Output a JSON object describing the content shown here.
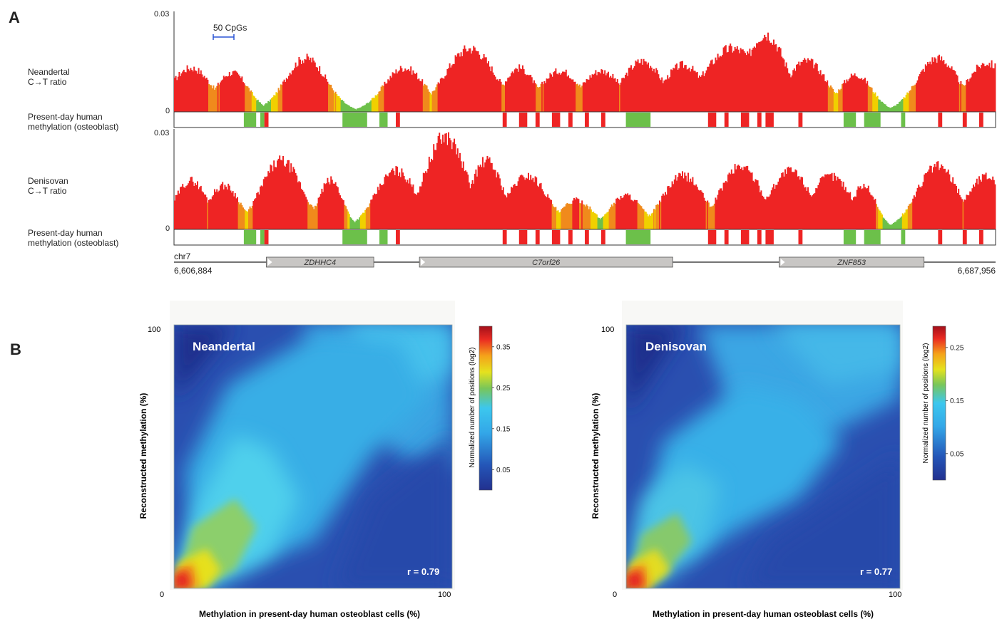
{
  "panel_a": {
    "letter": "A",
    "scale_bar_label": "50 CpGs",
    "neandertal_label": "Neandertal\nC→T ratio",
    "denisovan_label": "Denisovan\nC→T ratio",
    "methylation_label_1": "Present-day human\nmethylation (osteoblast)",
    "methylation_label_2": "Present-day human\nmethylation (osteoblast)",
    "ymax_1": "0.03",
    "ymin_1": "0",
    "ymax_2": "0.03",
    "ymin_2": "0",
    "chromosome": "chr7",
    "start_coord": "6,606,884",
    "end_coord": "6,687,956",
    "genes": [
      {
        "name": "ZDHHC4",
        "start": 6616000,
        "end": 6626600
      },
      {
        "name": "C7orf26",
        "start": 6631100,
        "end": 6656100
      },
      {
        "name": "ZNF853",
        "start": 6666600,
        "end": 6680900
      }
    ],
    "colors": {
      "high": "#ee2424",
      "mid": "#f0d000",
      "low": "#6cc04a",
      "orange": "#f08a1c"
    }
  },
  "panel_b": {
    "letter": "B",
    "x_axis_title": "Methylation in present-day human osteoblast cells (%)",
    "y_axis_title": "Reconstructed methylation (%)",
    "colorbar_title": "Normalized number of positions (log2)",
    "plots": [
      {
        "name": "Neandertal",
        "r_label": "r = 0.79",
        "x_min": "0",
        "x_max": "100",
        "y_min": "0",
        "y_max": "100",
        "colorbar_ticks": [
          "0.35",
          "0.25",
          "0.15",
          "0.05"
        ]
      },
      {
        "name": "Denisovan",
        "r_label": "r = 0.77",
        "x_min": "0",
        "x_max": "100",
        "y_min": "0",
        "y_max": "100",
        "colorbar_ticks": [
          "0.25",
          "0.15",
          "0.05"
        ]
      }
    ]
  },
  "chart_data": [
    {
      "type": "area",
      "title": "Neandertal C→T ratio",
      "ylim": [
        0,
        0.03
      ],
      "xlabel": "chr7 6,606,884 – 6,687,956"
    },
    {
      "type": "area",
      "title": "Denisovan C→T ratio",
      "ylim": [
        0,
        0.03
      ],
      "xlabel": "chr7 6,606,884 – 6,687,956"
    },
    {
      "type": "heatmap",
      "title": "Neandertal",
      "xlabel": "Methylation in present-day human osteoblast cells (%)",
      "ylabel": "Reconstructed methylation (%)",
      "xlim": [
        0,
        100
      ],
      "ylim": [
        0,
        100
      ],
      "annotation": "r = 0.79",
      "colorbar_ticks": [
        0.05,
        0.15,
        0.25,
        0.35
      ]
    },
    {
      "type": "heatmap",
      "title": "Denisovan",
      "xlabel": "Methylation in present-day human osteoblast cells (%)",
      "ylabel": "Reconstructed methylation (%)",
      "xlim": [
        0,
        100
      ],
      "ylim": [
        0,
        100
      ],
      "annotation": "r = 0.77",
      "colorbar_ticks": [
        0.05,
        0.15,
        0.25
      ]
    }
  ]
}
